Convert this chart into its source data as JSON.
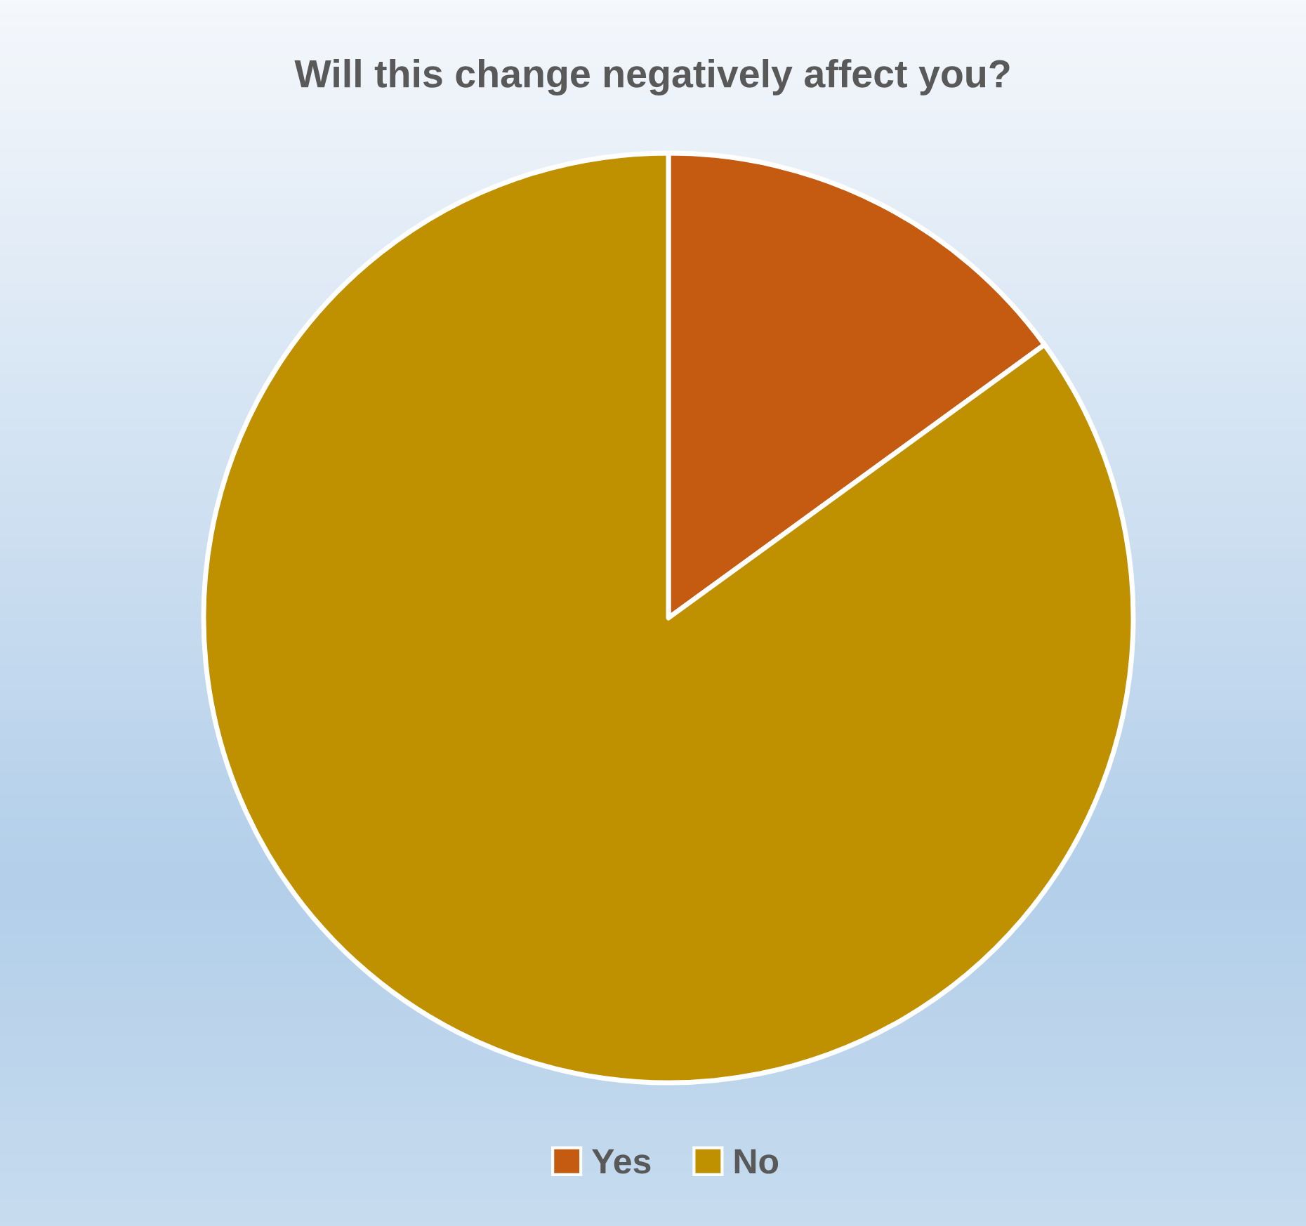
{
  "chart_data": {
    "type": "pie",
    "title": "Will this change negatively affect you?",
    "categories": [
      "Yes",
      "No"
    ],
    "values": [
      15,
      85
    ],
    "colors": [
      "#c55a11",
      "#bf9000"
    ],
    "legend": "bottom"
  }
}
